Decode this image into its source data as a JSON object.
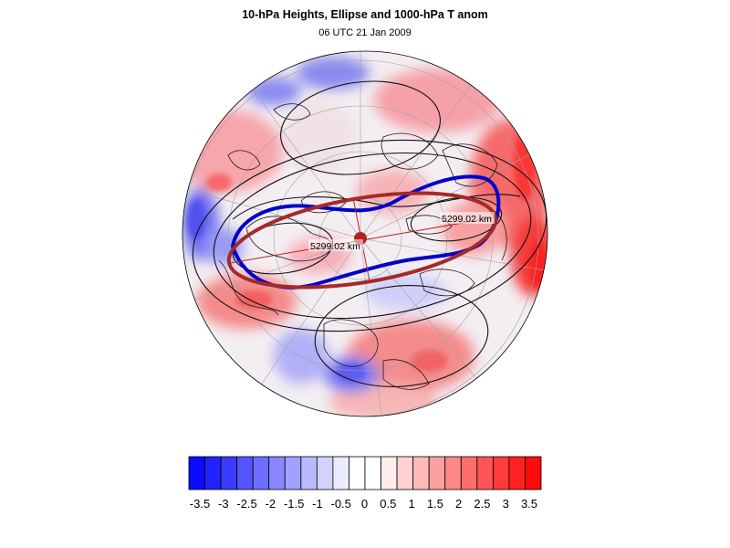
{
  "figure": {
    "title": "10-hPa Heights, Ellipse and 1000-hPa T anom",
    "subtitle": "06 UTC 21 Jan 2009"
  },
  "map": {
    "projection": "polar stereographic (north polar)",
    "contour_labels": [
      "5299.02 km",
      "5299.02 km"
    ],
    "ellipse_color": "#a52a2a",
    "contour_highlight_color": "#0000cc",
    "center_marker_color": "#b22222"
  },
  "colorbar": {
    "tick_labels": [
      "-3.5",
      "-3",
      "-2.5",
      "-2",
      "-1.5",
      "-1",
      "-0.5",
      "0",
      "0.5",
      "1",
      "1.5",
      "2",
      "2.5",
      "3",
      "3.5"
    ],
    "colors": [
      "#0b0bff",
      "#2222ff",
      "#3b3bff",
      "#5555ff",
      "#6d6dff",
      "#8787ff",
      "#a0a0ff",
      "#b9b9ff",
      "#d2d2ff",
      "#ececff",
      "#ffffff",
      "#ffffff",
      "#ffecec",
      "#ffd2d2",
      "#ffb9b9",
      "#ffa0a0",
      "#ff8787",
      "#ff6d6d",
      "#ff5555",
      "#ff3b3b",
      "#ff2222",
      "#ff0b0b"
    ]
  }
}
